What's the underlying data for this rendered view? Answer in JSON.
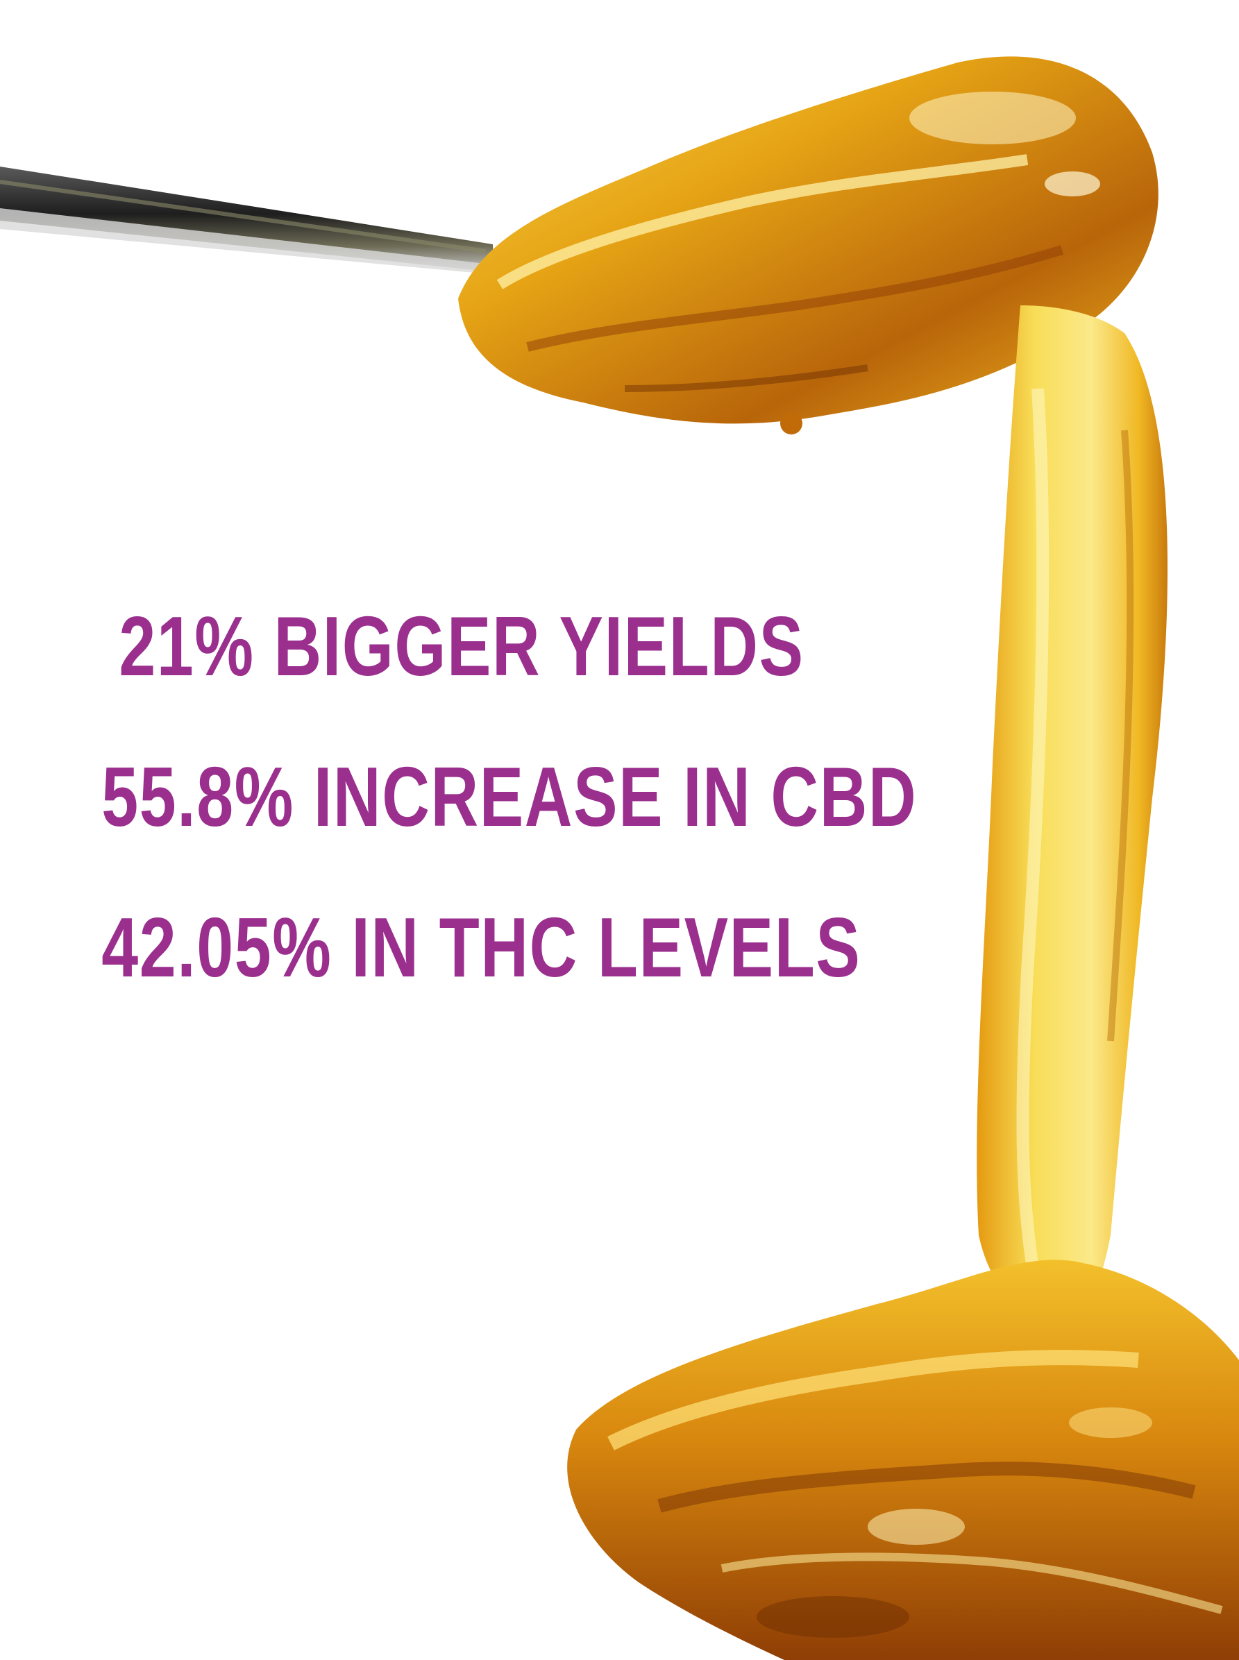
{
  "headline": {
    "lines": [
      "21% BIGGER YIELDS",
      "55.8% INCREASE IN CBD",
      "42.05% IN THC LEVELS"
    ],
    "color": "#9a2f8e"
  },
  "image": {
    "subject": "golden resin / oil dripping from a metal dab tool",
    "colors": {
      "background": "#ffffff",
      "resin_light": "#f7d64a",
      "resin_mid": "#e9a412",
      "resin_dark": "#9a4a06",
      "tool": "#2a2a2a"
    }
  }
}
